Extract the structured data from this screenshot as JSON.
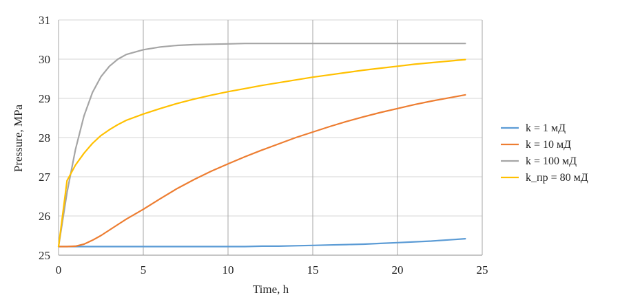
{
  "chart_data": {
    "type": "line",
    "title": "",
    "xlabel": "Time, h",
    "ylabel": "Pressure, MPa",
    "xlim": [
      0,
      25
    ],
    "ylim": [
      25,
      31
    ],
    "xticks": [
      "0",
      "5",
      "10",
      "15",
      "20",
      "25"
    ],
    "yticks": [
      "25",
      "26",
      "27",
      "28",
      "29",
      "30",
      "31"
    ],
    "grid": true,
    "legend_position": "right",
    "x": [
      0,
      0.5,
      1,
      1.5,
      2,
      2.5,
      3,
      3.5,
      4,
      5,
      6,
      7,
      8,
      9,
      10,
      11,
      12,
      13,
      14,
      15,
      16,
      17,
      18,
      19,
      20,
      21,
      22,
      23,
      24
    ],
    "series": [
      {
        "name": "k = 1 мД",
        "color": "#5b9bd5",
        "values": [
          25.22,
          25.22,
          25.22,
          25.22,
          25.22,
          25.22,
          25.22,
          25.22,
          25.22,
          25.22,
          25.22,
          25.22,
          25.22,
          25.22,
          25.22,
          25.22,
          25.23,
          25.23,
          25.24,
          25.25,
          25.26,
          25.27,
          25.28,
          25.3,
          25.32,
          25.34,
          25.36,
          25.39,
          25.42
        ]
      },
      {
        "name": "k = 10 мД",
        "color": "#ed7d31",
        "values": [
          25.22,
          25.22,
          25.23,
          25.28,
          25.38,
          25.5,
          25.64,
          25.78,
          25.92,
          26.17,
          26.44,
          26.7,
          26.93,
          27.14,
          27.33,
          27.51,
          27.68,
          27.84,
          28.0,
          28.14,
          28.28,
          28.41,
          28.53,
          28.64,
          28.74,
          28.84,
          28.93,
          29.01,
          29.09
        ]
      },
      {
        "name": "k = 100 мД",
        "color": "#a5a5a5",
        "values": [
          25.22,
          26.6,
          27.7,
          28.55,
          29.15,
          29.55,
          29.82,
          30.0,
          30.12,
          30.24,
          30.31,
          30.35,
          30.37,
          30.38,
          30.39,
          30.4,
          30.4,
          30.4,
          30.4,
          30.4,
          30.4,
          30.4,
          30.4,
          30.4,
          30.4,
          30.4,
          30.4,
          30.4,
          30.4
        ]
      },
      {
        "name": "k_пр = 80 мД",
        "color": "#ffc000",
        "values": [
          25.22,
          26.9,
          27.3,
          27.6,
          27.85,
          28.05,
          28.2,
          28.33,
          28.44,
          28.6,
          28.74,
          28.87,
          28.98,
          29.08,
          29.17,
          29.25,
          29.33,
          29.4,
          29.47,
          29.54,
          29.6,
          29.66,
          29.72,
          29.77,
          29.82,
          29.87,
          29.91,
          29.95,
          29.99
        ]
      }
    ]
  }
}
